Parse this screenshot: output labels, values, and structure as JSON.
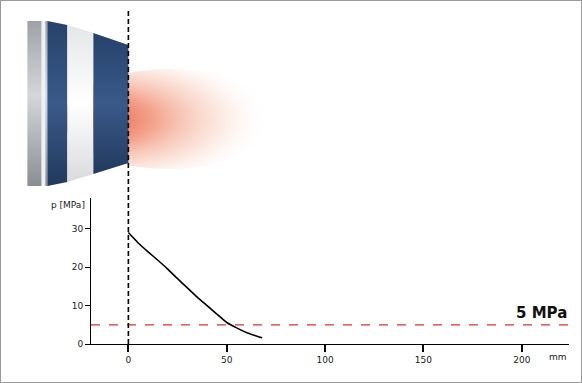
{
  "chart_data": {
    "type": "line",
    "xlabel": "mm",
    "ylabel": "p [MPa]",
    "x": [
      0,
      5,
      10,
      15,
      20,
      25,
      30,
      35,
      40,
      45,
      50,
      55,
      60,
      65,
      68
    ],
    "values": [
      29,
      26.3,
      24,
      21.8,
      19.5,
      17,
      14.6,
      12.2,
      10,
      7.8,
      5.6,
      4.2,
      3,
      2.1,
      1.6
    ],
    "color": "#000000",
    "xlim": [
      -19,
      224
    ],
    "ylim": [
      0,
      38
    ],
    "xticks": [
      0,
      50,
      100,
      150,
      200
    ],
    "yticks": [
      0,
      10,
      20,
      30
    ],
    "grid": false,
    "reference_line": {
      "y": 5,
      "label": "5 MPa",
      "color": "#e0302a",
      "line_style": "dashed"
    },
    "vertical_line": {
      "x": 0,
      "color": "#000000",
      "line_style": "dashed"
    }
  }
}
